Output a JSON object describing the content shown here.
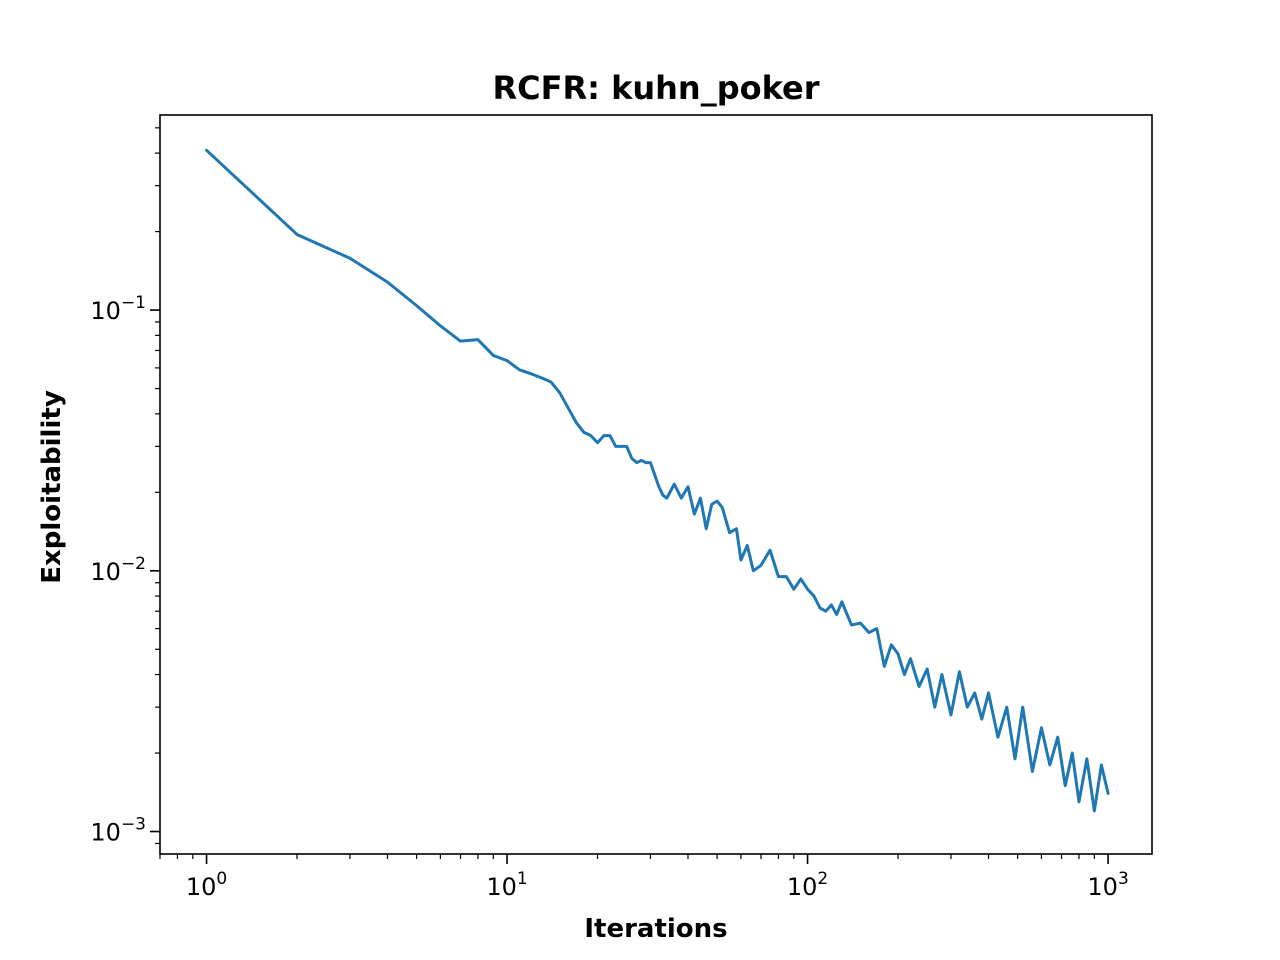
{
  "chart_data": {
    "type": "line",
    "title": "RCFR: kuhn_poker",
    "xlabel": "Iterations",
    "ylabel": "Exploitability",
    "xscale": "log",
    "yscale": "log",
    "xlim": [
      0.7,
      1400
    ],
    "ylim": [
      0.00082,
      0.56
    ],
    "grid": false,
    "line_color": "#1f77b4",
    "x_ticks": [
      {
        "base": "10",
        "exp": "0",
        "value": 1
      },
      {
        "base": "10",
        "exp": "1",
        "value": 10
      },
      {
        "base": "10",
        "exp": "2",
        "value": 100
      },
      {
        "base": "10",
        "exp": "3",
        "value": 1000
      }
    ],
    "y_ticks": [
      {
        "base": "10",
        "exp": "−3",
        "value": 0.001
      },
      {
        "base": "10",
        "exp": "−2",
        "value": 0.01
      },
      {
        "base": "10",
        "exp": "−1",
        "value": 0.1
      }
    ],
    "series": [
      {
        "x": [
          1,
          2,
          3,
          4,
          5,
          6,
          7,
          8,
          9,
          10,
          11,
          12,
          13,
          14,
          15,
          16,
          17,
          18,
          19,
          20,
          21,
          22,
          23,
          25,
          26,
          27,
          28,
          29,
          30,
          32,
          33,
          34,
          36,
          38,
          40,
          42,
          44,
          46,
          48,
          50,
          52,
          55,
          58,
          60,
          63,
          66,
          70,
          75,
          80,
          85,
          90,
          95,
          100,
          105,
          110,
          115,
          120,
          125,
          130,
          140,
          150,
          160,
          170,
          180,
          190,
          200,
          210,
          220,
          235,
          250,
          265,
          280,
          300,
          320,
          340,
          360,
          380,
          400,
          430,
          460,
          490,
          520,
          560,
          600,
          640,
          680,
          720,
          760,
          800,
          850,
          900,
          950,
          1000
        ],
        "y": [
          0.41,
          0.195,
          0.158,
          0.128,
          0.104,
          0.087,
          0.076,
          0.077,
          0.067,
          0.064,
          0.059,
          0.057,
          0.055,
          0.053,
          0.048,
          0.042,
          0.037,
          0.034,
          0.033,
          0.031,
          0.033,
          0.033,
          0.03,
          0.03,
          0.027,
          0.026,
          0.0265,
          0.026,
          0.026,
          0.021,
          0.0195,
          0.019,
          0.0215,
          0.019,
          0.021,
          0.0165,
          0.019,
          0.0145,
          0.018,
          0.0185,
          0.0175,
          0.014,
          0.0145,
          0.011,
          0.0125,
          0.01,
          0.0105,
          0.012,
          0.0095,
          0.0095,
          0.0085,
          0.0093,
          0.0085,
          0.008,
          0.0072,
          0.007,
          0.0074,
          0.0068,
          0.0076,
          0.0062,
          0.0063,
          0.0058,
          0.006,
          0.0043,
          0.0052,
          0.0048,
          0.004,
          0.0046,
          0.0036,
          0.0042,
          0.003,
          0.004,
          0.0028,
          0.0041,
          0.003,
          0.0034,
          0.0027,
          0.0034,
          0.0023,
          0.003,
          0.0019,
          0.003,
          0.0017,
          0.0025,
          0.0018,
          0.0023,
          0.0015,
          0.002,
          0.0013,
          0.0019,
          0.0012,
          0.0018,
          0.0014
        ]
      }
    ]
  }
}
